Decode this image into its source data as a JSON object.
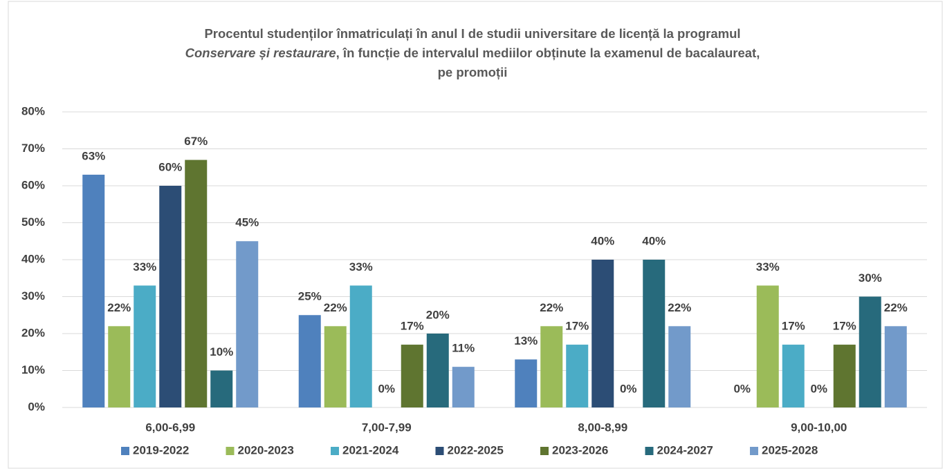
{
  "chart_data": {
    "type": "bar",
    "title": [
      [
        {
          "text": "Procentul studenților înmatriculați în anul I de studii universitare de licență la programul",
          "italic": false
        }
      ],
      [
        {
          "text": "Conservare și restaurare",
          "italic": true
        },
        {
          "text": ", în funcție de intervalul mediilor obținute la examenul de bacalaureat,",
          "italic": false
        }
      ],
      [
        {
          "text": "pe promoții",
          "italic": false
        }
      ]
    ],
    "categories": [
      "6,00-6,99",
      "7,00-7,99",
      "8,00-8,99",
      "9,00-10,00"
    ],
    "series": [
      {
        "name": "2019-2022",
        "color": "#4f81bd",
        "values": [
          63,
          25,
          13,
          0
        ],
        "value_labels": [
          "63%",
          "25%",
          "13%",
          "0%"
        ]
      },
      {
        "name": "2020-2023",
        "color": "#9bbb59",
        "values": [
          22,
          22,
          22,
          33
        ],
        "value_labels": [
          "22%",
          "22%",
          "22%",
          "33%"
        ]
      },
      {
        "name": "2021-2024",
        "color": "#4bacc6",
        "values": [
          33,
          33,
          17,
          17
        ],
        "value_labels": [
          "33%",
          "33%",
          "17%",
          "17%"
        ]
      },
      {
        "name": "2022-2025",
        "color": "#2c4d75",
        "values": [
          60,
          0,
          40,
          0
        ],
        "value_labels": [
          "60%",
          "0%",
          "40%",
          "0%"
        ]
      },
      {
        "name": "2023-2026",
        "color": "#5f7530",
        "values": [
          67,
          17,
          0,
          17
        ],
        "value_labels": [
          "67%",
          "17%",
          "0%",
          "17%"
        ]
      },
      {
        "name": "2024-2027",
        "color": "#276a7c",
        "values": [
          10,
          20,
          40,
          30
        ],
        "value_labels": [
          "10%",
          "20%",
          "40%",
          "30%"
        ]
      },
      {
        "name": "2025-2028",
        "color": "#729aca",
        "values": [
          45,
          11,
          22,
          22
        ],
        "value_labels": [
          "45%",
          "11%",
          "22%",
          "22%"
        ]
      }
    ],
    "ylim": [
      0,
      80
    ],
    "yticks": [
      {
        "value": 0,
        "label": "0%"
      },
      {
        "value": 10,
        "label": "10%"
      },
      {
        "value": 20,
        "label": "20%"
      },
      {
        "value": 30,
        "label": "30%"
      },
      {
        "value": 40,
        "label": "40%"
      },
      {
        "value": 50,
        "label": "50%"
      },
      {
        "value": 60,
        "label": "60%"
      },
      {
        "value": 70,
        "label": "70%"
      },
      {
        "value": 80,
        "label": "80%"
      }
    ],
    "grid": true,
    "legend": "bottom"
  }
}
